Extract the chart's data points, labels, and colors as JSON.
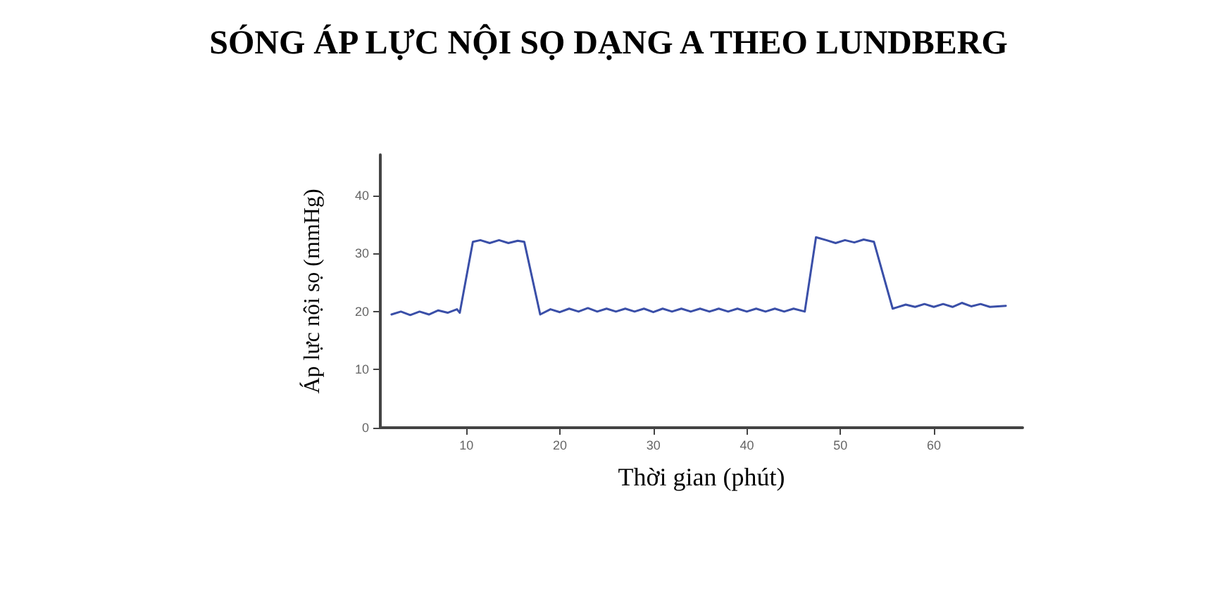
{
  "chart_data": {
    "type": "line",
    "title": "SÓNG ÁP LỰC NỘI SỌ DẠNG A THEO LUNDBERG",
    "xlabel": "Thời gian (phút)",
    "ylabel": "Áp lực nội sọ (mmHg)",
    "x": [
      2,
      3,
      4,
      5,
      6,
      7,
      8,
      9,
      9.3,
      10.7,
      11.5,
      12.5,
      13.5,
      14.5,
      15.5,
      16.2,
      17.9,
      19,
      20,
      21,
      22,
      23,
      24,
      25,
      26,
      27,
      28,
      29,
      30,
      31,
      32,
      33,
      34,
      35,
      36,
      37,
      38,
      39,
      40,
      41,
      42,
      43,
      44,
      45,
      46.2,
      47.4,
      48.5,
      49.5,
      50.5,
      51.5,
      52.5,
      53.6,
      55.6,
      57,
      58,
      59,
      60,
      61,
      62,
      63,
      64,
      65,
      66,
      67.7
    ],
    "series": [
      {
        "color": "#3a4fa8",
        "values": [
          19.5,
          20,
          19.4,
          20,
          19.5,
          20.2,
          19.8,
          20.4,
          19.8,
          32,
          32.3,
          31.8,
          32.3,
          31.8,
          32.2,
          32,
          19.5,
          20.4,
          19.9,
          20.5,
          20,
          20.6,
          20,
          20.5,
          20,
          20.5,
          20,
          20.5,
          19.9,
          20.5,
          20,
          20.5,
          20,
          20.5,
          20,
          20.5,
          20,
          20.5,
          20,
          20.5,
          20,
          20.5,
          20,
          20.5,
          20,
          32.8,
          32.3,
          31.8,
          32.3,
          31.9,
          32.4,
          32,
          20.5,
          21.2,
          20.8,
          21.3,
          20.8,
          21.3,
          20.8,
          21.5,
          20.9,
          21.3,
          20.8,
          21
        ]
      }
    ],
    "xlim": [
      0.8,
      69.5
    ],
    "ylim": [
      0,
      47
    ],
    "xticks": [
      10,
      20,
      30,
      40,
      50,
      60
    ],
    "yticks": [
      0,
      10,
      20,
      30,
      40
    ],
    "grid": false,
    "marker": "none",
    "line_style": "solid"
  }
}
